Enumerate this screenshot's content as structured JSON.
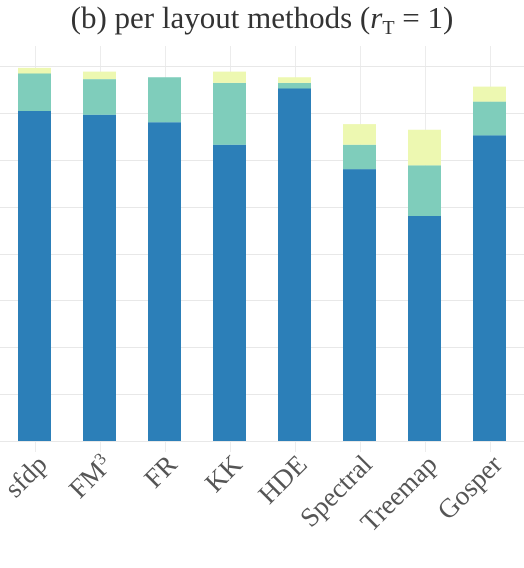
{
  "chart_data": {
    "type": "bar",
    "stacked": true,
    "title": {
      "prefix": "(b) per layout methods (",
      "var": "r",
      "sub": "T",
      "suffix": " = 1)"
    },
    "categories": [
      "sfdp",
      "FM",
      "FR",
      "KK",
      "HDE",
      "Spectral",
      "Treemap",
      "Gosper"
    ],
    "category_superscripts": {
      "FM": "3"
    },
    "ylim": [
      0,
      100
    ],
    "grid": true,
    "colors": [
      "#2c7fb8",
      "#7fcdbb",
      "#edf8b1"
    ],
    "series": [
      {
        "values": [
          88.0,
          87.0,
          85.0,
          79.0,
          94.0,
          72.5,
          60.0,
          81.5
        ]
      },
      {
        "values": [
          10.0,
          9.5,
          12.0,
          16.5,
          1.5,
          6.5,
          13.5,
          9.0
        ]
      },
      {
        "values": [
          1.5,
          2.0,
          0.0,
          3.0,
          1.5,
          5.5,
          9.5,
          4.0
        ]
      }
    ]
  }
}
